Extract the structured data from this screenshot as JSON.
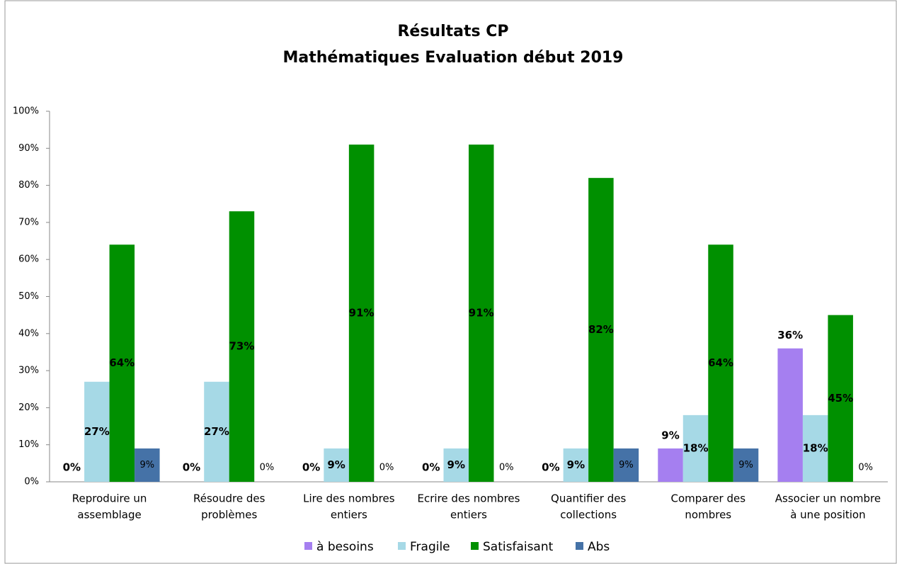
{
  "chart_data": {
    "type": "bar",
    "title": [
      "Résultats CP",
      "Mathématiques Evaluation début 2019"
    ],
    "categories": [
      [
        "Reproduire un",
        "assemblage"
      ],
      [
        "Résoudre des",
        "problèmes"
      ],
      [
        "Lire des nombres",
        "entiers"
      ],
      [
        "Ecrire des nombres",
        "entiers"
      ],
      [
        "Quantifier des",
        "collections"
      ],
      [
        "Comparer des",
        "nombres"
      ],
      [
        "Associer un nombre",
        "à une position"
      ]
    ],
    "series": [
      {
        "name": "à besoins",
        "color": "#a57ff0",
        "values": [
          0,
          0,
          0,
          0,
          0,
          9,
          36
        ],
        "value_labels": [
          "0%",
          "0%",
          "0%",
          "0%",
          "0%",
          "9%",
          "36%"
        ]
      },
      {
        "name": "Fragile",
        "color": "#a6d9e6",
        "values": [
          27,
          27,
          9,
          9,
          9,
          18,
          18
        ],
        "value_labels": [
          "27%",
          "27%",
          "9%",
          "9%",
          "9%",
          "18%",
          "18%"
        ]
      },
      {
        "name": "Satisfaisant",
        "color": "#009000",
        "values": [
          64,
          73,
          91,
          91,
          82,
          64,
          45
        ],
        "value_labels": [
          "64%",
          "73%",
          "91%",
          "91%",
          "82%",
          "64%",
          "45%"
        ]
      },
      {
        "name": "Abs",
        "color": "#4572a7",
        "values": [
          9,
          0,
          0,
          0,
          9,
          9,
          0
        ],
        "value_labels": [
          "9%",
          "0%",
          "0%",
          "0%",
          "9%",
          "9%",
          "0%"
        ]
      }
    ],
    "ylim": [
      0,
      100
    ],
    "yticks": [
      {
        "value": 0,
        "label": "0%"
      },
      {
        "value": 10,
        "label": "10%"
      },
      {
        "value": 20,
        "label": "20%"
      },
      {
        "value": 30,
        "label": "30%"
      },
      {
        "value": 40,
        "label": "40%"
      },
      {
        "value": 50,
        "label": "50%"
      },
      {
        "value": 60,
        "label": "60%"
      },
      {
        "value": 70,
        "label": "70%"
      },
      {
        "value": 80,
        "label": "80%"
      },
      {
        "value": 90,
        "label": "90%"
      },
      {
        "value": 100,
        "label": "100%"
      }
    ],
    "legend": "bottom"
  }
}
